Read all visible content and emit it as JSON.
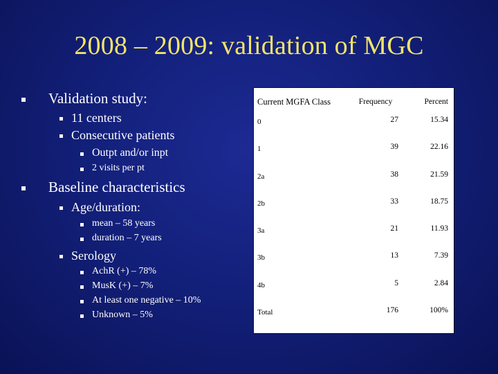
{
  "slide": {
    "title": "2008 – 2009: validation of MGC"
  },
  "bullets": {
    "validation": "Validation study:",
    "centers": "11 centers",
    "consecutive": "Consecutive patients",
    "outpt": "Outpt and/or inpt",
    "visits": "2 visits per pt",
    "baseline": "Baseline characteristics",
    "age": "Age/duration:",
    "mean": "mean – 58 years",
    "duration": "duration – 7 years",
    "serology": "Serology",
    "achr": "AchR (+) – 78%",
    "musk": "MusK (+) – 7%",
    "negative": "At least one negative – 10%",
    "unknown": "Unknown – 5%"
  },
  "table": {
    "headers": [
      "Current MGFA Class",
      "Frequency",
      "Percent"
    ],
    "rows": [
      {
        "cls": "0",
        "freq": "27",
        "pct": "15.34"
      },
      {
        "cls": "1",
        "freq": "39",
        "pct": "22.16"
      },
      {
        "cls": "2a",
        "freq": "38",
        "pct": "21.59"
      },
      {
        "cls": "2b",
        "freq": "33",
        "pct": "18.75"
      },
      {
        "cls": "3a",
        "freq": "21",
        "pct": "11.93"
      },
      {
        "cls": "3b",
        "freq": "13",
        "pct": "7.39"
      },
      {
        "cls": "4b",
        "freq": "5",
        "pct": "2.84"
      },
      {
        "cls": "Total",
        "freq": "176",
        "pct": "100%"
      }
    ]
  }
}
